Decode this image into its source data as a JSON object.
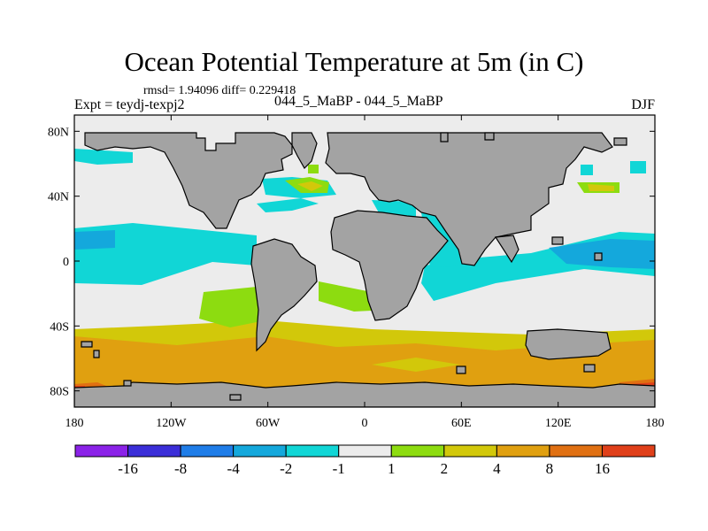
{
  "title": "Ocean Potential Temperature at 5m (in C)",
  "stats_label": "rmsd= 1.94096 diff= 0.229418",
  "experiment_label": "Expt = teydj-texpj2",
  "center_label": "044_5_MaBP - 044_5_MaBP",
  "season_label": "DJF",
  "y_ticks": [
    {
      "lat": 80,
      "label": "80N"
    },
    {
      "lat": 40,
      "label": "40N"
    },
    {
      "lat": 0,
      "label": "0"
    },
    {
      "lat": -40,
      "label": "40S"
    },
    {
      "lat": -80,
      "label": "80S"
    }
  ],
  "x_ticks": [
    {
      "lon": -180,
      "label": "180"
    },
    {
      "lon": -120,
      "label": "120W"
    },
    {
      "lon": -60,
      "label": "60W"
    },
    {
      "lon": 0,
      "label": "0"
    },
    {
      "lon": 60,
      "label": "60E"
    },
    {
      "lon": 120,
      "label": "120E"
    },
    {
      "lon": 180,
      "label": "180"
    }
  ],
  "colorbar": {
    "colors": [
      "#8b22e8",
      "#3b2ed8",
      "#1f7de8",
      "#14a8dc",
      "#11d6d6",
      "#ececec",
      "#8ddc10",
      "#d2c80a",
      "#e0a010",
      "#e07012",
      "#e0401a"
    ],
    "labels": [
      "-16",
      "-8",
      "-4",
      "-2",
      "-1",
      "1",
      "2",
      "4",
      "8",
      "16"
    ]
  },
  "land_color": "#a3a3a3"
}
